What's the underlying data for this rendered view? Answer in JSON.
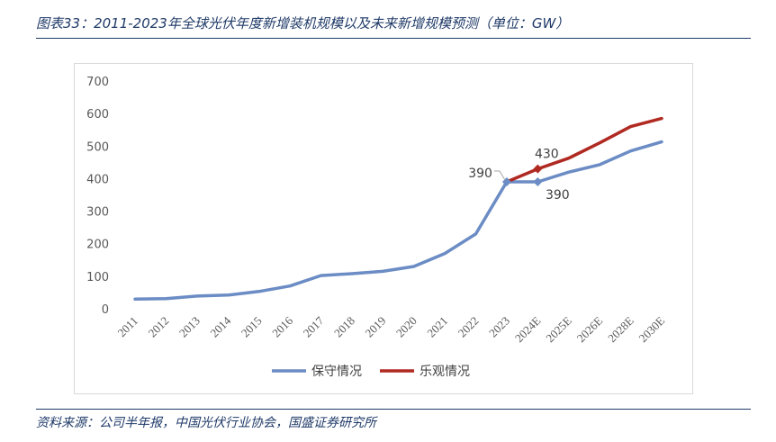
{
  "figure": {
    "title": "图表33：2011-2023年全球光伏年度新增装机规模以及未来新增规模预测（单位：GW）",
    "source": "资料来源：公司半年报，中国光伏行业协会，国盛证券研究所"
  },
  "chart_data": {
    "type": "line",
    "categories": [
      "2011",
      "2012",
      "2013",
      "2014",
      "2015",
      "2016",
      "2017",
      "2018",
      "2019",
      "2020",
      "2021",
      "2022",
      "2023",
      "2024E",
      "2025E",
      "2026E",
      "2028E",
      "2030E"
    ],
    "ylim": [
      0,
      700
    ],
    "yticks": [
      0,
      100,
      200,
      300,
      400,
      500,
      600,
      700
    ],
    "grid": false,
    "legend_position": "bottom",
    "series": [
      {
        "name": "保守情况",
        "color": "#6b8cc4",
        "values": [
          30,
          31,
          39,
          42,
          53,
          70,
          102,
          108,
          115,
          130,
          170,
          230,
          390,
          390,
          420,
          443,
          485,
          513
        ]
      },
      {
        "name": "乐观情况",
        "color": "#b02a22",
        "values": [
          null,
          null,
          null,
          null,
          null,
          null,
          null,
          null,
          null,
          null,
          null,
          null,
          390,
          430,
          463,
          510,
          560,
          585
        ]
      }
    ],
    "data_labels": [
      {
        "text": "390",
        "series": 0,
        "index": 12,
        "position": "left"
      },
      {
        "text": "430",
        "series": 1,
        "index": 13,
        "position": "above"
      },
      {
        "text": "390",
        "series": 0,
        "index": 13,
        "position": "below-right"
      }
    ]
  }
}
